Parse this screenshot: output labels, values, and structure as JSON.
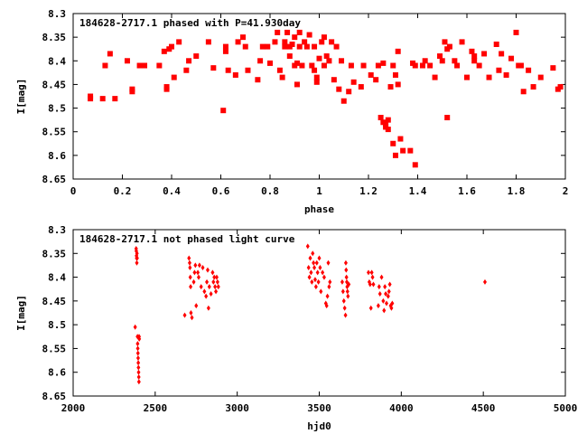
{
  "chart_data": [
    {
      "type": "scatter",
      "title": "184628-2717.1 phased with P=41.930day",
      "xlabel": "phase",
      "ylabel": "I[mag]",
      "xlim": [
        0,
        2
      ],
      "ylim": [
        8.65,
        8.3
      ],
      "y_inverted": true,
      "xticks": [
        0,
        0.2,
        0.4,
        0.6,
        0.8,
        1,
        1.2,
        1.4,
        1.6,
        1.8,
        2
      ],
      "yticks": [
        8.3,
        8.35,
        8.4,
        8.45,
        8.5,
        8.55,
        8.6,
        8.65
      ],
      "grid": false,
      "marker_color": "#ff0000",
      "marker": "filled-square",
      "points": [
        [
          0.07,
          8.48
        ],
        [
          0.07,
          8.475
        ],
        [
          0.12,
          8.48
        ],
        [
          0.13,
          8.41
        ],
        [
          0.15,
          8.385
        ],
        [
          0.17,
          8.48
        ],
        [
          0.22,
          8.4
        ],
        [
          0.24,
          8.46
        ],
        [
          0.24,
          8.465
        ],
        [
          0.27,
          8.41
        ],
        [
          0.29,
          8.41
        ],
        [
          0.35,
          8.41
        ],
        [
          0.37,
          8.38
        ],
        [
          0.38,
          8.46
        ],
        [
          0.38,
          8.455
        ],
        [
          0.39,
          8.375
        ],
        [
          0.4,
          8.37
        ],
        [
          0.41,
          8.435
        ],
        [
          0.43,
          8.36
        ],
        [
          0.46,
          8.42
        ],
        [
          0.47,
          8.4
        ],
        [
          0.5,
          8.39
        ],
        [
          0.55,
          8.36
        ],
        [
          0.57,
          8.415
        ],
        [
          0.61,
          8.505
        ],
        [
          0.62,
          8.37
        ],
        [
          0.62,
          8.38
        ],
        [
          0.63,
          8.42
        ],
        [
          0.66,
          8.43
        ],
        [
          0.67,
          8.36
        ],
        [
          0.69,
          8.35
        ],
        [
          0.7,
          8.37
        ],
        [
          0.71,
          8.42
        ],
        [
          0.75,
          8.44
        ],
        [
          0.76,
          8.4
        ],
        [
          0.77,
          8.37
        ],
        [
          0.79,
          8.37
        ],
        [
          0.8,
          8.405
        ],
        [
          0.82,
          8.36
        ],
        [
          0.83,
          8.34
        ],
        [
          0.84,
          8.42
        ],
        [
          0.85,
          8.435
        ],
        [
          0.86,
          8.37
        ],
        [
          0.86,
          8.36
        ],
        [
          0.87,
          8.34
        ],
        [
          0.88,
          8.39
        ],
        [
          0.88,
          8.37
        ],
        [
          0.89,
          8.365
        ],
        [
          0.9,
          8.41
        ],
        [
          0.9,
          8.35
        ],
        [
          0.91,
          8.45
        ],
        [
          0.91,
          8.405
        ],
        [
          0.92,
          8.34
        ],
        [
          0.92,
          8.37
        ],
        [
          0.93,
          8.41
        ],
        [
          0.94,
          8.36
        ],
        [
          0.95,
          8.37
        ],
        [
          0.96,
          8.345
        ],
        [
          0.97,
          8.41
        ],
        [
          0.98,
          8.42
        ],
        [
          0.98,
          8.37
        ],
        [
          0.99,
          8.445
        ],
        [
          0.99,
          8.435
        ],
        [
          1.0,
          8.395
        ],
        [
          1.01,
          8.36
        ],
        [
          1.02,
          8.35
        ],
        [
          1.02,
          8.41
        ],
        [
          1.03,
          8.39
        ],
        [
          1.04,
          8.4
        ],
        [
          1.05,
          8.36
        ],
        [
          1.06,
          8.44
        ],
        [
          1.07,
          8.37
        ],
        [
          1.08,
          8.46
        ],
        [
          1.09,
          8.4
        ],
        [
          1.1,
          8.485
        ],
        [
          1.12,
          8.465
        ],
        [
          1.13,
          8.41
        ],
        [
          1.14,
          8.445
        ],
        [
          1.17,
          8.455
        ],
        [
          1.18,
          8.41
        ],
        [
          1.21,
          8.43
        ],
        [
          1.23,
          8.44
        ],
        [
          1.24,
          8.41
        ],
        [
          1.25,
          8.52
        ],
        [
          1.26,
          8.53
        ],
        [
          1.26,
          8.405
        ],
        [
          1.27,
          8.54
        ],
        [
          1.27,
          8.535
        ],
        [
          1.28,
          8.525
        ],
        [
          1.28,
          8.545
        ],
        [
          1.29,
          8.455
        ],
        [
          1.3,
          8.575
        ],
        [
          1.3,
          8.41
        ],
        [
          1.31,
          8.6
        ],
        [
          1.31,
          8.43
        ],
        [
          1.32,
          8.38
        ],
        [
          1.32,
          8.45
        ],
        [
          1.33,
          8.565
        ],
        [
          1.34,
          8.59
        ],
        [
          1.37,
          8.59
        ],
        [
          1.39,
          8.62
        ],
        [
          1.38,
          8.405
        ],
        [
          1.39,
          8.41
        ],
        [
          1.42,
          8.41
        ],
        [
          1.43,
          8.4
        ],
        [
          1.45,
          8.41
        ],
        [
          1.47,
          8.435
        ],
        [
          1.49,
          8.39
        ],
        [
          1.5,
          8.4
        ],
        [
          1.51,
          8.36
        ],
        [
          1.52,
          8.375
        ],
        [
          1.52,
          8.52
        ],
        [
          1.53,
          8.37
        ],
        [
          1.55,
          8.4
        ],
        [
          1.56,
          8.41
        ],
        [
          1.58,
          8.36
        ],
        [
          1.6,
          8.435
        ],
        [
          1.62,
          8.38
        ],
        [
          1.63,
          8.39
        ],
        [
          1.63,
          8.4
        ],
        [
          1.65,
          8.41
        ],
        [
          1.67,
          8.385
        ],
        [
          1.69,
          8.435
        ],
        [
          1.72,
          8.365
        ],
        [
          1.73,
          8.42
        ],
        [
          1.74,
          8.385
        ],
        [
          1.76,
          8.43
        ],
        [
          1.78,
          8.395
        ],
        [
          1.8,
          8.34
        ],
        [
          1.81,
          8.41
        ],
        [
          1.82,
          8.41
        ],
        [
          1.83,
          8.465
        ],
        [
          1.85,
          8.42
        ],
        [
          1.87,
          8.455
        ],
        [
          1.9,
          8.435
        ],
        [
          1.95,
          8.415
        ],
        [
          1.97,
          8.46
        ],
        [
          1.98,
          8.455
        ]
      ]
    },
    {
      "type": "scatter",
      "title": "184628-2717.1 not phased light curve",
      "xlabel": "hjd0",
      "ylabel": "I[mag]",
      "xlim": [
        2000,
        5000
      ],
      "ylim": [
        8.65,
        8.3
      ],
      "y_inverted": true,
      "xticks": [
        2000,
        2500,
        3000,
        3500,
        4000,
        4500,
        5000
      ],
      "yticks": [
        8.3,
        8.35,
        8.4,
        8.45,
        8.5,
        8.55,
        8.6,
        8.65
      ],
      "grid": false,
      "marker_color": "#ff0000",
      "marker": "filled-diamond",
      "points": [
        [
          2378,
          8.505
        ],
        [
          2384,
          8.34
        ],
        [
          2385,
          8.345
        ],
        [
          2386,
          8.355
        ],
        [
          2387,
          8.36
        ],
        [
          2388,
          8.37
        ],
        [
          2389,
          8.35
        ],
        [
          2390,
          8.36
        ],
        [
          2392,
          8.525
        ],
        [
          2393,
          8.54
        ],
        [
          2394,
          8.55
        ],
        [
          2395,
          8.56
        ],
        [
          2396,
          8.57
        ],
        [
          2397,
          8.58
        ],
        [
          2398,
          8.59
        ],
        [
          2399,
          8.6
        ],
        [
          2400,
          8.61
        ],
        [
          2401,
          8.62
        ],
        [
          2402,
          8.525
        ],
        [
          2403,
          8.53
        ],
        [
          2680,
          8.48
        ],
        [
          2706,
          8.36
        ],
        [
          2710,
          8.37
        ],
        [
          2712,
          8.38
        ],
        [
          2714,
          8.4
        ],
        [
          2716,
          8.42
        ],
        [
          2718,
          8.475
        ],
        [
          2724,
          8.485
        ],
        [
          2735,
          8.41
        ],
        [
          2740,
          8.39
        ],
        [
          2745,
          8.375
        ],
        [
          2750,
          8.46
        ],
        [
          2760,
          8.39
        ],
        [
          2765,
          8.4
        ],
        [
          2770,
          8.375
        ],
        [
          2780,
          8.42
        ],
        [
          2790,
          8.38
        ],
        [
          2800,
          8.43
        ],
        [
          2810,
          8.44
        ],
        [
          2815,
          8.41
        ],
        [
          2820,
          8.385
        ],
        [
          2825,
          8.465
        ],
        [
          2830,
          8.42
        ],
        [
          2840,
          8.435
        ],
        [
          2850,
          8.39
        ],
        [
          2855,
          8.41
        ],
        [
          2860,
          8.4
        ],
        [
          2865,
          8.42
        ],
        [
          2870,
          8.43
        ],
        [
          2875,
          8.4
        ],
        [
          2880,
          8.41
        ],
        [
          2885,
          8.42
        ],
        [
          3430,
          8.335
        ],
        [
          3435,
          8.38
        ],
        [
          3440,
          8.4
        ],
        [
          3445,
          8.36
        ],
        [
          3450,
          8.39
        ],
        [
          3455,
          8.41
        ],
        [
          3460,
          8.35
        ],
        [
          3465,
          8.37
        ],
        [
          3470,
          8.38
        ],
        [
          3475,
          8.405
        ],
        [
          3480,
          8.42
        ],
        [
          3485,
          8.37
        ],
        [
          3490,
          8.39
        ],
        [
          3495,
          8.41
        ],
        [
          3500,
          8.36
        ],
        [
          3505,
          8.38
        ],
        [
          3510,
          8.43
        ],
        [
          3520,
          8.39
        ],
        [
          3530,
          8.4
        ],
        [
          3540,
          8.455
        ],
        [
          3545,
          8.46
        ],
        [
          3550,
          8.44
        ],
        [
          3555,
          8.37
        ],
        [
          3560,
          8.42
        ],
        [
          3565,
          8.41
        ],
        [
          3640,
          8.41
        ],
        [
          3645,
          8.43
        ],
        [
          3650,
          8.45
        ],
        [
          3655,
          8.465
        ],
        [
          3660,
          8.48
        ],
        [
          3662,
          8.37
        ],
        [
          3664,
          8.385
        ],
        [
          3666,
          8.4
        ],
        [
          3668,
          8.41
        ],
        [
          3670,
          8.42
        ],
        [
          3672,
          8.43
        ],
        [
          3675,
          8.44
        ],
        [
          3680,
          8.415
        ],
        [
          3800,
          8.39
        ],
        [
          3805,
          8.41
        ],
        [
          3810,
          8.415
        ],
        [
          3815,
          8.465
        ],
        [
          3820,
          8.39
        ],
        [
          3825,
          8.4
        ],
        [
          3830,
          8.415
        ],
        [
          3860,
          8.46
        ],
        [
          3865,
          8.42
        ],
        [
          3870,
          8.435
        ],
        [
          3880,
          8.4
        ],
        [
          3890,
          8.45
        ],
        [
          3895,
          8.47
        ],
        [
          3900,
          8.42
        ],
        [
          3905,
          8.435
        ],
        [
          3910,
          8.455
        ],
        [
          3920,
          8.44
        ],
        [
          3925,
          8.43
        ],
        [
          3930,
          8.415
        ],
        [
          3935,
          8.46
        ],
        [
          3940,
          8.465
        ],
        [
          3945,
          8.455
        ],
        [
          4510,
          8.41
        ]
      ]
    }
  ]
}
